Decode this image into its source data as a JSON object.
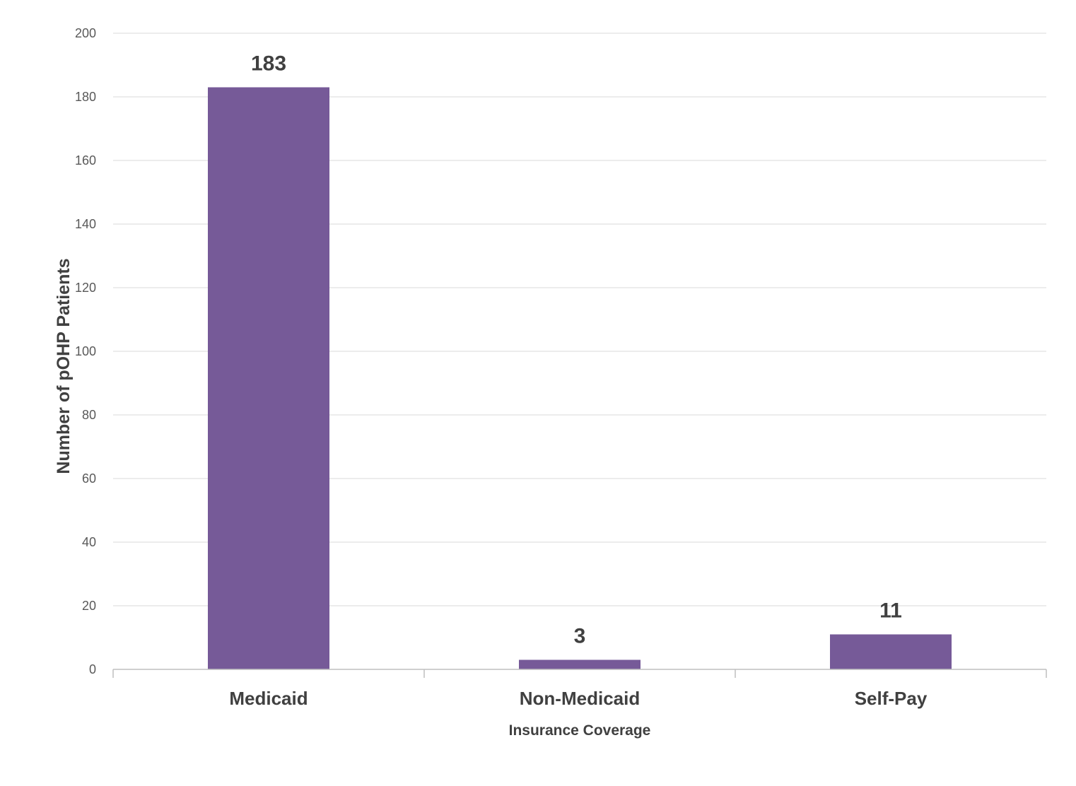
{
  "chart_data": {
    "type": "bar",
    "title": "",
    "categories": [
      "Medicaid",
      "Non-Medicaid",
      "Self-Pay"
    ],
    "values": [
      183,
      3,
      11
    ],
    "data_labels": [
      "183",
      "3",
      "11"
    ],
    "xlabel": "Insurance Coverage",
    "ylabel": "Number of pOHP Patients",
    "ylim": [
      0,
      200
    ],
    "yticks": [
      0,
      20,
      40,
      60,
      80,
      100,
      120,
      140,
      160,
      180,
      200
    ],
    "grid": true,
    "legend": "none",
    "colors": {
      "bar": "#765a98",
      "gridline": "#d9d9d9",
      "axis": "#bfbfbf",
      "text": "#404040",
      "tick_text": "#595959"
    }
  }
}
